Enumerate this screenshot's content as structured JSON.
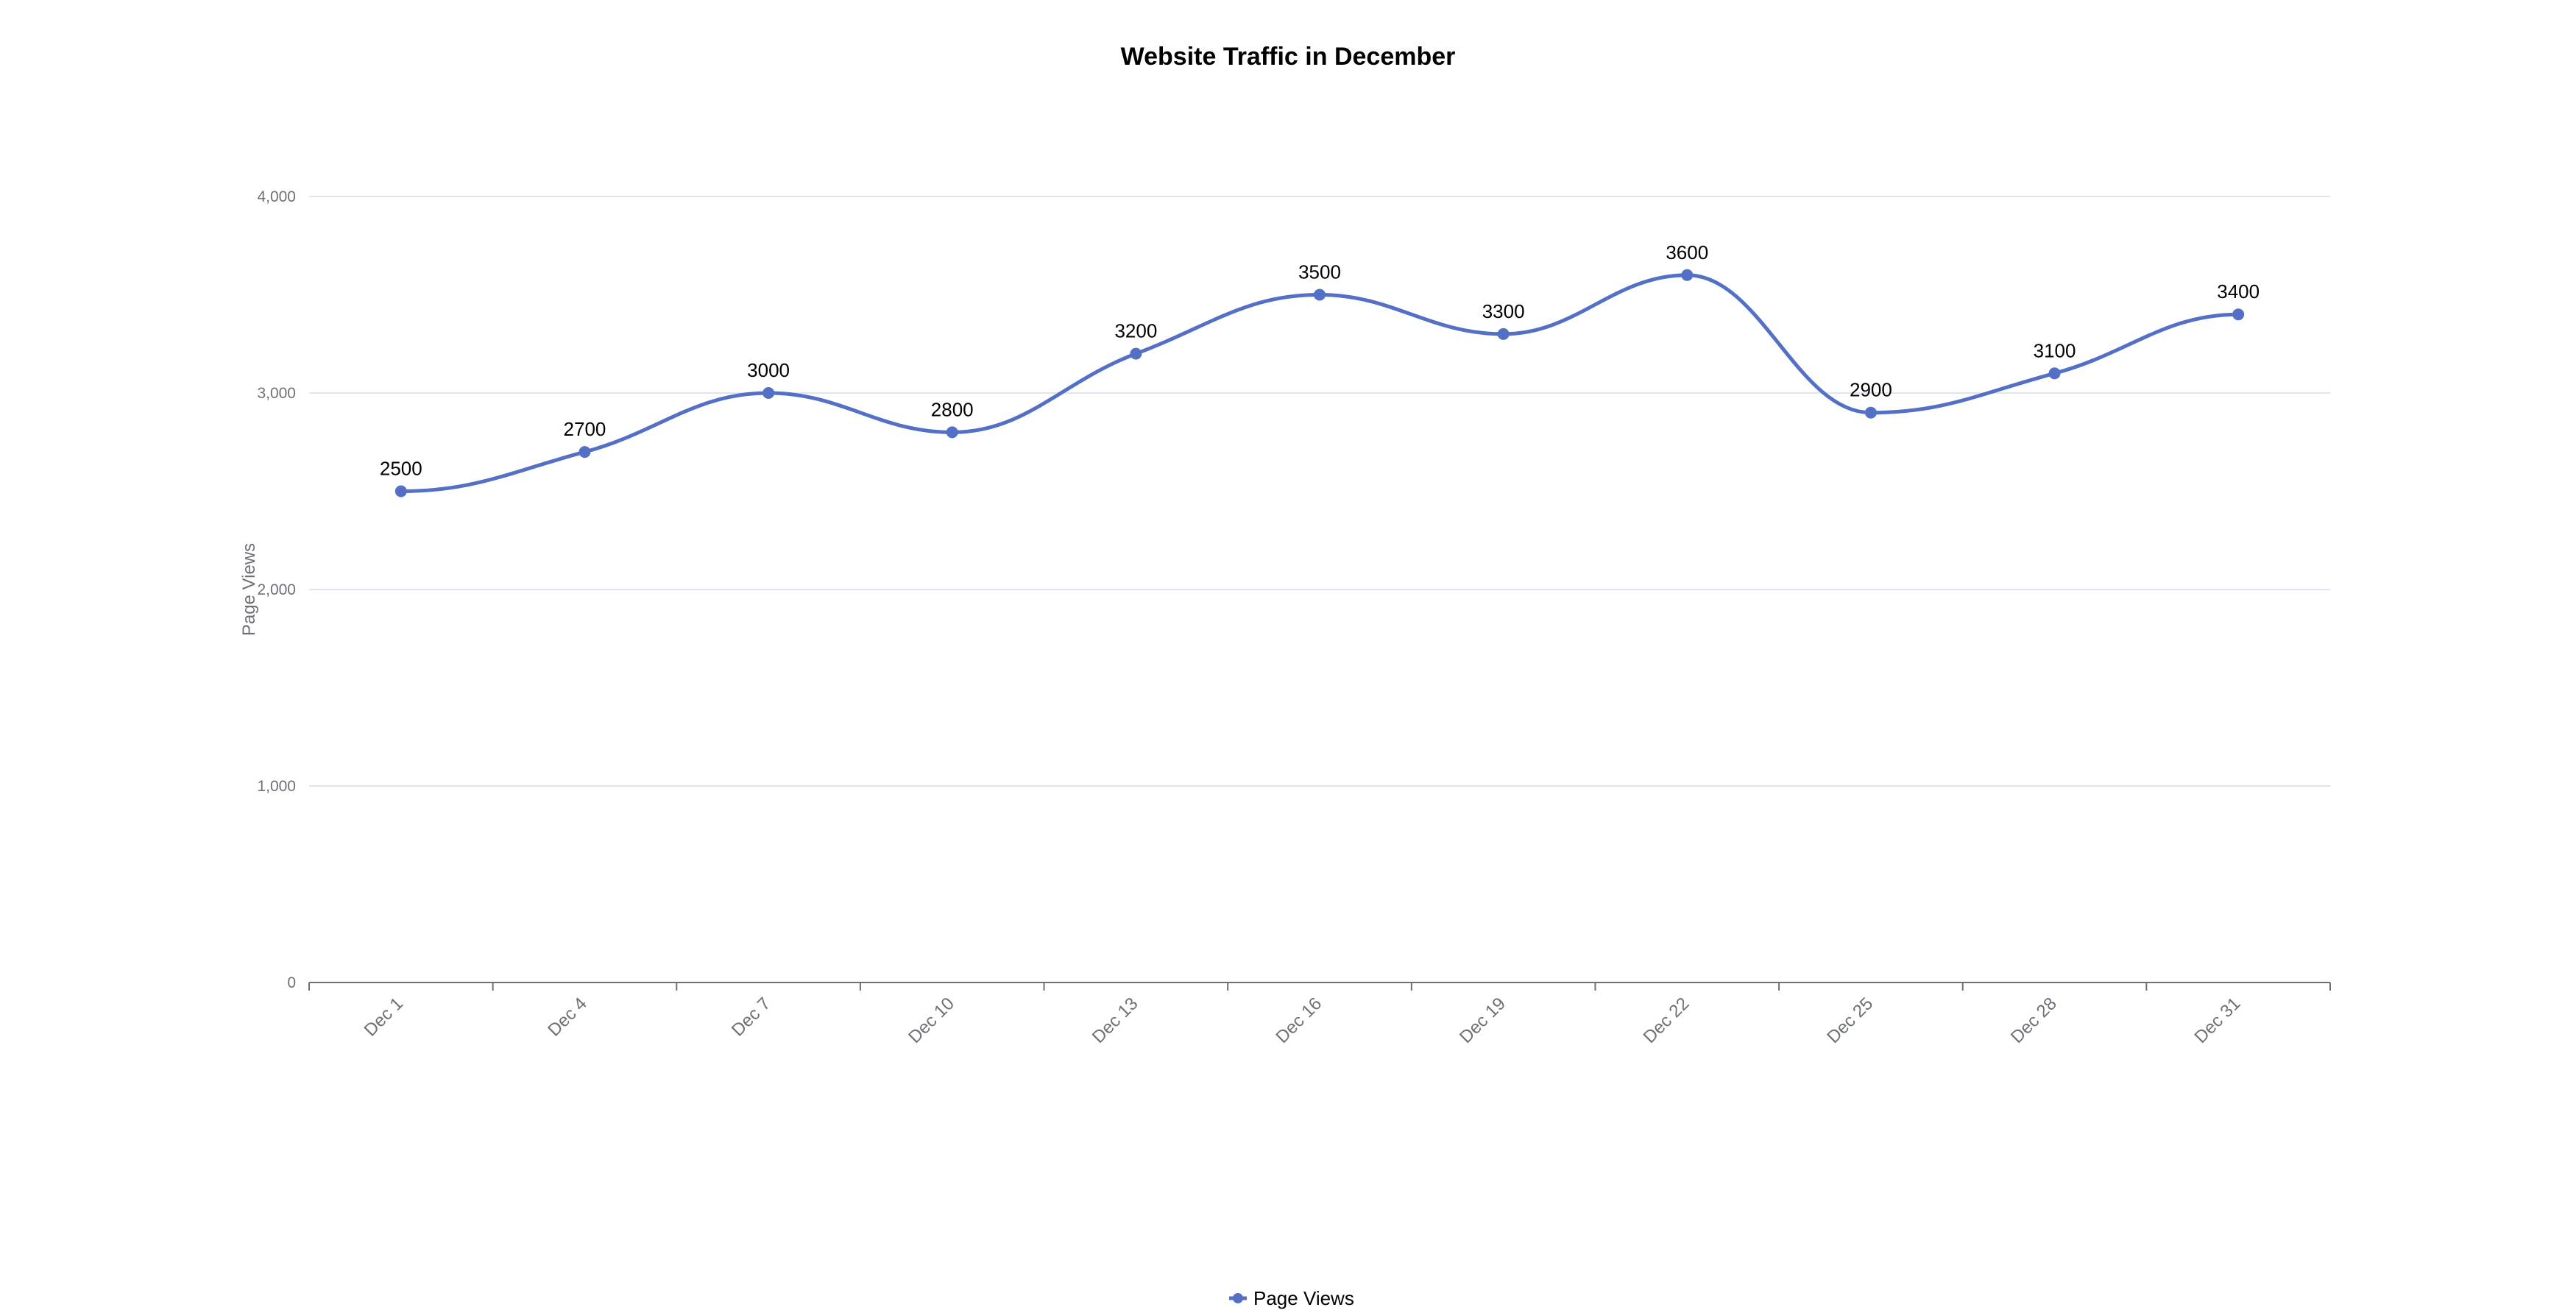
{
  "chart_data": {
    "type": "line",
    "title": "Website Traffic in December",
    "xlabel": "",
    "ylabel": "Page Views",
    "categories": [
      "Dec 1",
      "Dec 4",
      "Dec 7",
      "Dec 10",
      "Dec 13",
      "Dec 16",
      "Dec 19",
      "Dec 22",
      "Dec 25",
      "Dec 28",
      "Dec 31"
    ],
    "series": [
      {
        "name": "Page Views",
        "values": [
          2500,
          2700,
          3000,
          2800,
          3200,
          3500,
          3300,
          3600,
          2900,
          3100,
          3400
        ],
        "color": "#5470c6"
      }
    ],
    "ylim": [
      0,
      4000
    ],
    "yticks": [
      0,
      1000,
      2000,
      3000,
      4000
    ],
    "ytick_labels": [
      "0",
      "1,000",
      "2,000",
      "3,000",
      "4,000"
    ],
    "grid": true,
    "smooth": true,
    "data_labels": true,
    "legend_position": "bottom-center"
  }
}
